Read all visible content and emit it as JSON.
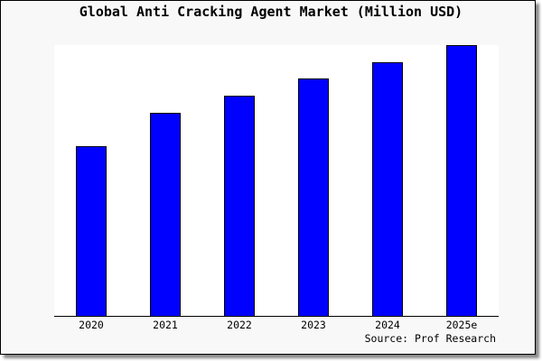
{
  "chart_data": {
    "type": "bar",
    "title": "Global Anti Cracking Agent Market (Million USD)",
    "categories": [
      "2020",
      "2021",
      "2022",
      "2023",
      "2024",
      "2025e"
    ],
    "values": [
      62.7,
      75,
      81.3,
      87.7,
      93.7,
      100
    ],
    "value_units": "relative (2025e = 100); no y-axis values are printed",
    "ylim": [
      0,
      100
    ],
    "xlabel": "",
    "ylabel": "",
    "grid": false,
    "legend": "none",
    "bar_color": "#0000ff",
    "bar_edge_color": "#000000",
    "plot_background": "#ffffff",
    "source": "Source: Prof Research"
  }
}
